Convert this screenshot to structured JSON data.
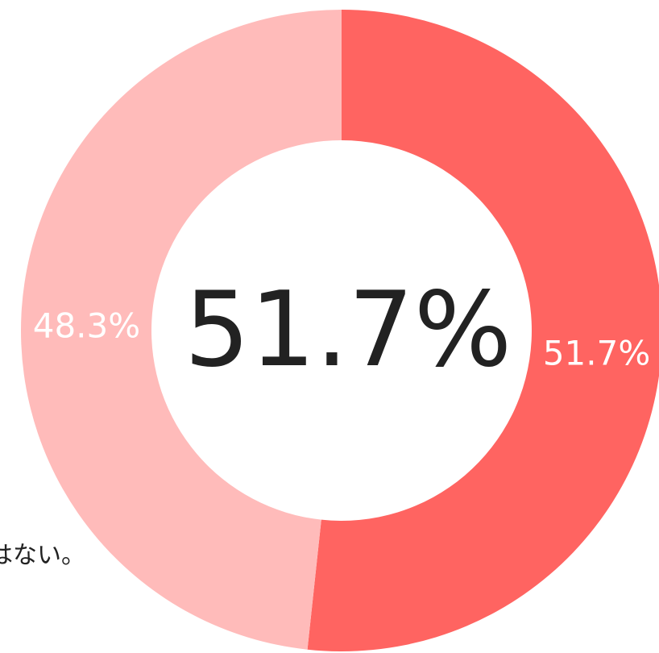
{
  "chart_data": {
    "type": "donut",
    "categories": [
      null,
      null
    ],
    "values": [
      51.7,
      48.3
    ],
    "value_labels": [
      "51.7%",
      "48.3%"
    ],
    "colors": [
      "#ff6461",
      "#ffbbba"
    ],
    "center_label": "51.7%",
    "side_text": "はない。"
  }
}
